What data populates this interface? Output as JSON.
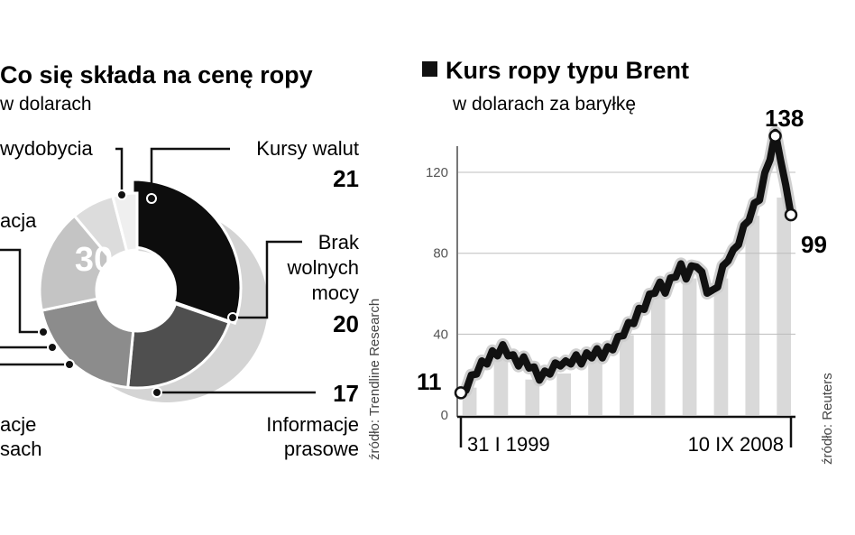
{
  "chart_data": [
    {
      "type": "pie",
      "title": "Co się składa na cenę ropy",
      "subtitle": "w dolarach",
      "source": "źródło: Trendline Research",
      "slices": [
        {
          "label": "Koszty wydobycia",
          "value": 30,
          "color": "#0d0d0d"
        },
        {
          "label": "Kursy walut",
          "value": 21,
          "color": "#4f4f4f"
        },
        {
          "label": "Brak wolnych mocy",
          "value": 20,
          "color": "#8c8c8c"
        },
        {
          "label": "Informacje prasowe",
          "value": 17,
          "color": "#c4c4c4"
        },
        {
          "label": "",
          "value": 7,
          "color": "#dcdcdc"
        },
        {
          "label": "",
          "value": 4,
          "color": "#efefef"
        }
      ],
      "display_labels": {
        "top_left": "wydobycia",
        "left_mid": "acja",
        "bottom_left_1": "acje",
        "bottom_left_2": "sach",
        "kursy": "Kursy walut",
        "brak_1": "Brak",
        "brak_2": "wolnych",
        "brak_3": "mocy",
        "info_1": "Informacje",
        "info_2": "prasowe"
      },
      "visible_values": {
        "center": "30",
        "kursy": "21",
        "brak": "20",
        "info": "17"
      }
    },
    {
      "type": "line",
      "title": "Kurs ropy typu Brent",
      "subtitle": "w dolarach za baryłkę",
      "source": "źródło: Reuters",
      "x_labels": [
        "31 I 1999",
        "10 IX 2008"
      ],
      "y_ticks": [
        0,
        40,
        80,
        120
      ],
      "ylim": [
        0,
        145
      ],
      "start_value": 11,
      "peak_value": 138,
      "end_value": 99,
      "series": [
        {
          "values": [
            11,
            14,
            18,
            22,
            25,
            27,
            30,
            31,
            33,
            31,
            28,
            26,
            27,
            25,
            22,
            19,
            20,
            22,
            24,
            26,
            25,
            27,
            28,
            27,
            29,
            30,
            31,
            30,
            32,
            34,
            37,
            41,
            44,
            47,
            51,
            54,
            58,
            62,
            64,
            62,
            66,
            70,
            73,
            69,
            72,
            75,
            69,
            62,
            60,
            65,
            72,
            78,
            80,
            86,
            92,
            98,
            103,
            108,
            118,
            128,
            138,
            128,
            112,
            99
          ]
        }
      ],
      "background_bars": 11
    }
  ]
}
